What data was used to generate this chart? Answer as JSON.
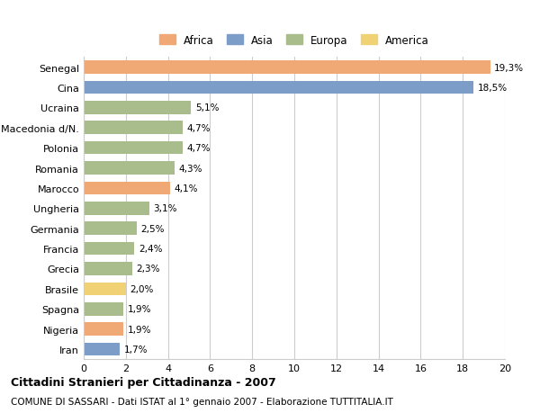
{
  "categories": [
    "Senegal",
    "Cina",
    "Ucraina",
    "Macedonia d/N.",
    "Polonia",
    "Romania",
    "Marocco",
    "Ungheria",
    "Germania",
    "Francia",
    "Grecia",
    "Brasile",
    "Spagna",
    "Nigeria",
    "Iran"
  ],
  "values": [
    19.3,
    18.5,
    5.1,
    4.7,
    4.7,
    4.3,
    4.1,
    3.1,
    2.5,
    2.4,
    2.3,
    2.0,
    1.9,
    1.9,
    1.7
  ],
  "labels": [
    "19,3%",
    "18,5%",
    "5,1%",
    "4,7%",
    "4,7%",
    "4,3%",
    "4,1%",
    "3,1%",
    "2,5%",
    "2,4%",
    "2,3%",
    "2,0%",
    "1,9%",
    "1,9%",
    "1,7%"
  ],
  "continents": [
    "Africa",
    "Asia",
    "Europa",
    "Europa",
    "Europa",
    "Europa",
    "Africa",
    "Europa",
    "Europa",
    "Europa",
    "Europa",
    "America",
    "Europa",
    "Africa",
    "Asia"
  ],
  "colors": {
    "Africa": "#F0A875",
    "Asia": "#7B9DC7",
    "Europa": "#A8BC8C",
    "America": "#F0D275"
  },
  "legend_order": [
    "Africa",
    "Asia",
    "Europa",
    "America"
  ],
  "legend_colors": [
    "#F0A875",
    "#7B9DC7",
    "#A8BC8C",
    "#F0D275"
  ],
  "title": "Cittadini Stranieri per Cittadinanza - 2007",
  "subtitle": "COMUNE DI SASSARI - Dati ISTAT al 1° gennaio 2007 - Elaborazione TUTTITALIA.IT",
  "xlim": [
    0,
    20
  ],
  "xticks": [
    0,
    2,
    4,
    6,
    8,
    10,
    12,
    14,
    16,
    18,
    20
  ],
  "background_color": "#ffffff",
  "grid_color": "#cccccc",
  "bar_height": 0.65
}
